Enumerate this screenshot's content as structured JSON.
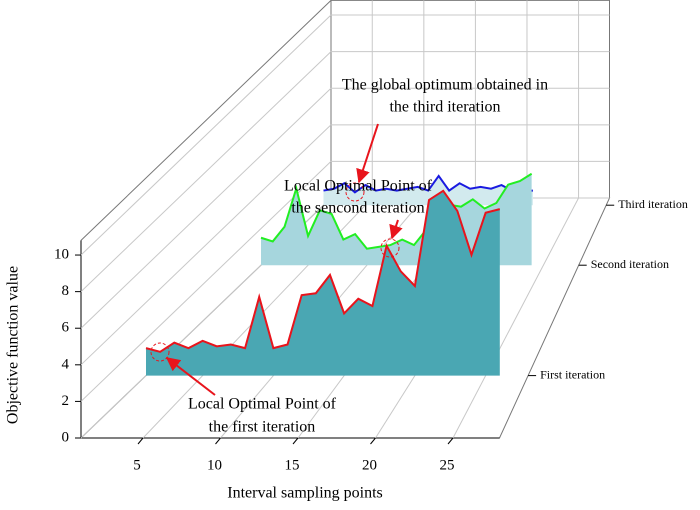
{
  "chart_data": {
    "type": "waterfall3d",
    "x_label": "Interval sampling points",
    "y_label": "Objective function value",
    "xlim": [
      1,
      28
    ],
    "ylim": [
      0,
      10.8
    ],
    "xticks": [
      5,
      10,
      15,
      20,
      25
    ],
    "yticks": [
      0,
      2,
      4,
      6,
      8,
      10
    ],
    "grid": true,
    "series": [
      {
        "name": "First iteration",
        "color": "#e8141c",
        "fill": "#4aa7b3",
        "x": [
          1,
          2,
          3,
          4,
          5,
          6,
          7,
          8,
          9,
          10,
          11,
          12,
          13,
          14,
          15,
          16,
          17,
          18,
          19,
          20,
          21,
          22,
          23,
          24,
          25,
          26
        ],
        "values": [
          1.5,
          1.3,
          1.8,
          1.5,
          1.9,
          1.6,
          1.7,
          1.5,
          4.3,
          1.5,
          1.7,
          4.4,
          4.5,
          5.5,
          3.4,
          4.2,
          3.8,
          7.1,
          5.7,
          4.9,
          9.6,
          10.1,
          9.0,
          6.6,
          8.9,
          9.1
        ]
      },
      {
        "name": "Second iteration",
        "color": "#22ee22",
        "fill": "#a6d6dd",
        "x": [
          1,
          2,
          3,
          4,
          5,
          6,
          7,
          8,
          9,
          10,
          11,
          12,
          13,
          14,
          15,
          16,
          17,
          18,
          19,
          20,
          21,
          22,
          23,
          24
        ],
        "values": [
          1.5,
          1.3,
          2.1,
          4.2,
          1.6,
          3.0,
          2.8,
          1.4,
          1.7,
          0.9,
          1.0,
          1.1,
          1.4,
          1.1,
          1.9,
          3.6,
          3.3,
          3.2,
          3.6,
          3.1,
          3.4,
          4.4,
          4.6,
          5.0
        ]
      },
      {
        "name": "Third iteration",
        "color": "#1a1ae0",
        "fill": "#d2eaee",
        "x": [
          1,
          2,
          3,
          4,
          5,
          6,
          7,
          8,
          9,
          10,
          11,
          12,
          13,
          14,
          15,
          16,
          17,
          18,
          19,
          20,
          21
        ],
        "values": [
          0.8,
          0.9,
          1.2,
          0.7,
          1.1,
          0.8,
          0.9,
          0.8,
          0.9,
          1.0,
          0.8,
          1.6,
          0.8,
          1.2,
          0.9,
          1.0,
          0.9,
          1.1,
          0.8,
          0.8,
          0.8
        ]
      }
    ],
    "annotations": [
      {
        "lines": [
          "The global optimum obtained in",
          "the third iteration"
        ]
      },
      {
        "lines": [
          "Local Optimal Point of",
          "the sencond iteration"
        ]
      },
      {
        "lines": [
          "Local Optimal Point of",
          "the first iteration"
        ]
      }
    ]
  }
}
